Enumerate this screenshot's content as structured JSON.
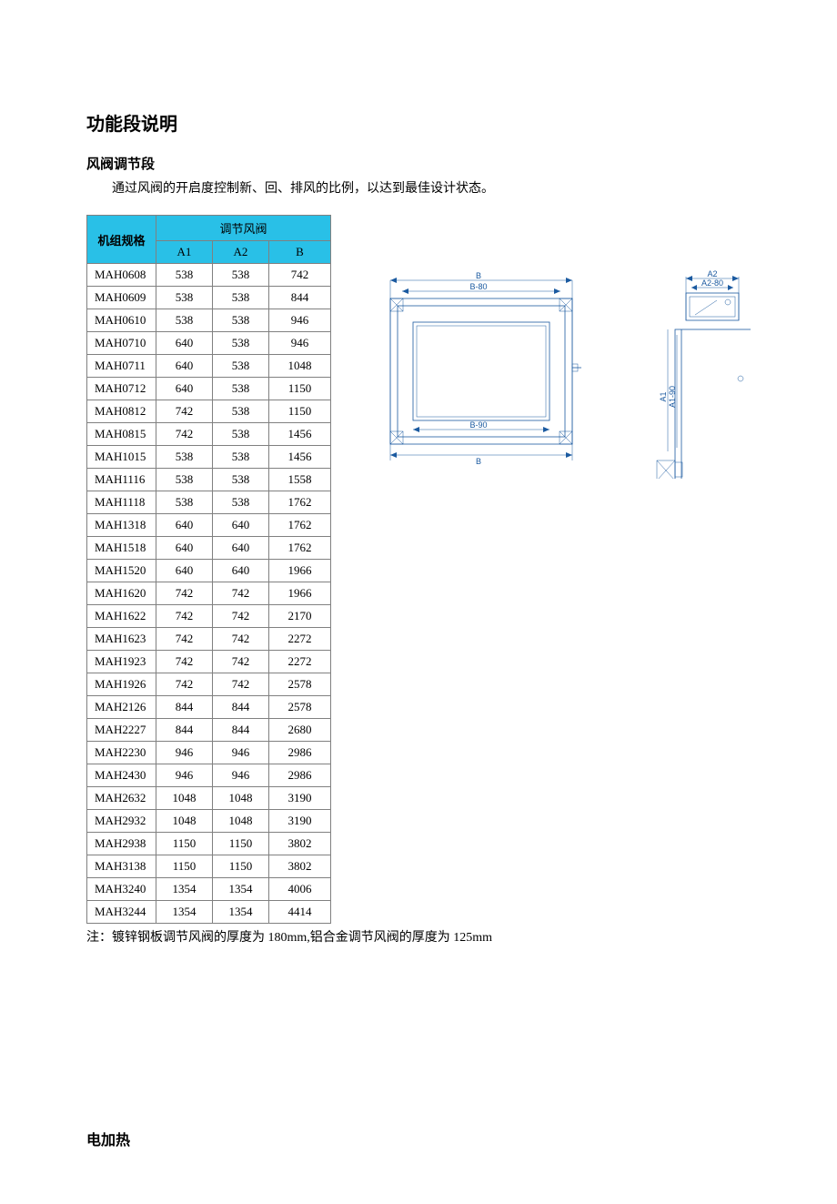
{
  "colors": {
    "header_bg": "#29c0e7",
    "border": "#808080",
    "diagram_stroke": "#1b5aa0",
    "text": "#000000",
    "page_bg": "#ffffff"
  },
  "title": "功能段说明",
  "subtitle": "风阀调节段",
  "body": "通过风阀的开启度控制新、回、排风的比例，以达到最佳设计状态。",
  "note": "注：镀锌钢板调节风阀的厚度为 180mm,铝合金调节风阀的厚度为 125mm",
  "section2": "电加热",
  "diagram_labels": {
    "B_top": "B",
    "B80": "B-80",
    "B90": "B-90",
    "B_bot": "B",
    "A1": "A1",
    "A190": "A1-90",
    "A2": "A2",
    "A280": "A2-80"
  },
  "table": {
    "header_spec": "机组规格",
    "header_group": "调节风阀",
    "col_a1": "A1",
    "col_a2": "A2",
    "col_b": "B",
    "rows": [
      {
        "model": "MAH0608",
        "a1": "538",
        "a2": "538",
        "b": "742"
      },
      {
        "model": "MAH0609",
        "a1": "538",
        "a2": "538",
        "b": "844"
      },
      {
        "model": "MAH0610",
        "a1": "538",
        "a2": "538",
        "b": "946"
      },
      {
        "model": "MAH0710",
        "a1": "640",
        "a2": "538",
        "b": "946"
      },
      {
        "model": "MAH0711",
        "a1": "640",
        "a2": "538",
        "b": "1048"
      },
      {
        "model": "MAH0712",
        "a1": "640",
        "a2": "538",
        "b": "1150"
      },
      {
        "model": "MAH0812",
        "a1": "742",
        "a2": "538",
        "b": "1150"
      },
      {
        "model": "MAH0815",
        "a1": "742",
        "a2": "538",
        "b": "1456"
      },
      {
        "model": "MAH1015",
        "a1": "538",
        "a2": "538",
        "b": "1456"
      },
      {
        "model": "MAH1116",
        "a1": "538",
        "a2": "538",
        "b": "1558"
      },
      {
        "model": "MAH1118",
        "a1": "538",
        "a2": "538",
        "b": "1762"
      },
      {
        "model": "MAH1318",
        "a1": "640",
        "a2": "640",
        "b": "1762"
      },
      {
        "model": "MAH1518",
        "a1": "640",
        "a2": "640",
        "b": "1762"
      },
      {
        "model": "MAH1520",
        "a1": "640",
        "a2": "640",
        "b": "1966"
      },
      {
        "model": "MAH1620",
        "a1": "742",
        "a2": "742",
        "b": "1966"
      },
      {
        "model": "MAH1622",
        "a1": "742",
        "a2": "742",
        "b": "2170"
      },
      {
        "model": "MAH1623",
        "a1": "742",
        "a2": "742",
        "b": "2272"
      },
      {
        "model": "MAH1923",
        "a1": "742",
        "a2": "742",
        "b": "2272"
      },
      {
        "model": "MAH1926",
        "a1": "742",
        "a2": "742",
        "b": "2578"
      },
      {
        "model": "MAH2126",
        "a1": "844",
        "a2": "844",
        "b": "2578"
      },
      {
        "model": "MAH2227",
        "a1": "844",
        "a2": "844",
        "b": "2680"
      },
      {
        "model": "MAH2230",
        "a1": "946",
        "a2": "946",
        "b": "2986"
      },
      {
        "model": "MAH2430",
        "a1": "946",
        "a2": "946",
        "b": "2986"
      },
      {
        "model": "MAH2632",
        "a1": "1048",
        "a2": "1048",
        "b": "3190"
      },
      {
        "model": "MAH2932",
        "a1": "1048",
        "a2": "1048",
        "b": "3190"
      },
      {
        "model": "MAH2938",
        "a1": "1150",
        "a2": "1150",
        "b": "3802"
      },
      {
        "model": "MAH3138",
        "a1": "1150",
        "a2": "1150",
        "b": "3802"
      },
      {
        "model": "MAH3240",
        "a1": "1354",
        "a2": "1354",
        "b": "4006"
      },
      {
        "model": "MAH3244",
        "a1": "1354",
        "a2": "1354",
        "b": "4414"
      }
    ]
  }
}
